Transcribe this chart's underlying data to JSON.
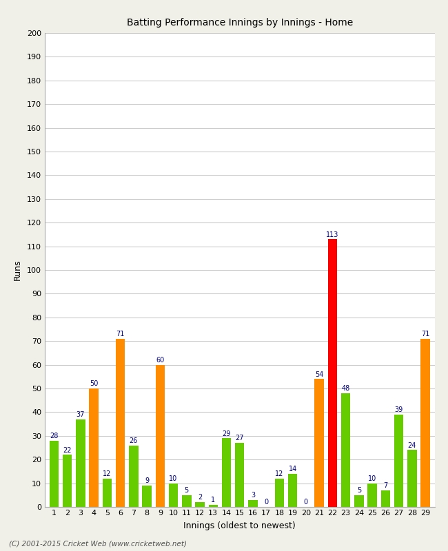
{
  "title": "Batting Performance Innings by Innings - Home",
  "xlabel": "Innings (oldest to newest)",
  "ylabel": "Runs",
  "values": [
    28,
    22,
    37,
    50,
    12,
    71,
    26,
    9,
    60,
    10,
    5,
    2,
    1,
    29,
    27,
    3,
    0,
    12,
    14,
    0,
    54,
    113,
    48,
    5,
    10,
    7,
    39,
    24,
    71
  ],
  "colors": [
    "#66cc00",
    "#66cc00",
    "#66cc00",
    "#ff8c00",
    "#66cc00",
    "#ff8c00",
    "#66cc00",
    "#66cc00",
    "#ff8c00",
    "#66cc00",
    "#66cc00",
    "#66cc00",
    "#66cc00",
    "#66cc00",
    "#66cc00",
    "#66cc00",
    "#66cc00",
    "#66cc00",
    "#66cc00",
    "#66cc00",
    "#ff8c00",
    "#ff0000",
    "#66cc00",
    "#66cc00",
    "#66cc00",
    "#66cc00",
    "#66cc00",
    "#66cc00",
    "#ff8c00"
  ],
  "labels": [
    "1",
    "2",
    "3",
    "4",
    "5",
    "6",
    "7",
    "8",
    "9",
    "10",
    "11",
    "12",
    "13",
    "14",
    "15",
    "16",
    "17",
    "18",
    "19",
    "20",
    "21",
    "22",
    "23",
    "24",
    "25",
    "26",
    "27",
    "28",
    "29"
  ],
  "ylim": [
    0,
    200
  ],
  "yticks": [
    0,
    10,
    20,
    30,
    40,
    50,
    60,
    70,
    80,
    90,
    100,
    110,
    120,
    130,
    140,
    150,
    160,
    170,
    180,
    190,
    200
  ],
  "value_label_color": "#000080",
  "value_label_fontsize": 7,
  "axis_label_fontsize": 9,
  "tick_fontsize": 8,
  "footer": "(C) 2001-2015 Cricket Web (www.cricketweb.net)",
  "background_color": "#f0f0e8",
  "plot_background_color": "#ffffff",
  "grid_color": "#cccccc"
}
